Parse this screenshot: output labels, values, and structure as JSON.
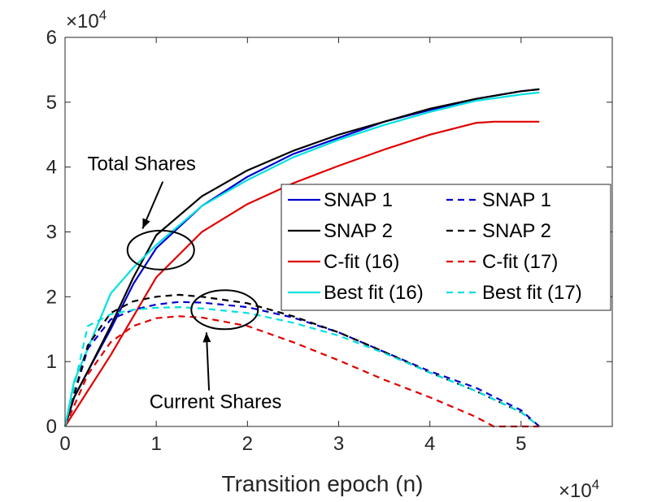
{
  "chart_data": {
    "type": "line",
    "xlabel": "Transition epoch (n)",
    "x_multiplier": "×10",
    "x_multiplier_exp": "4",
    "y_multiplier": "×10",
    "y_multiplier_exp": "4",
    "xlim": [
      0,
      6
    ],
    "ylim": [
      0,
      6
    ],
    "xticks": [
      "0",
      "1",
      "2",
      "3",
      "4",
      "5"
    ],
    "yticks": [
      "0",
      "1",
      "2",
      "3",
      "4",
      "5",
      "6"
    ],
    "grid": false,
    "legend_location": "center-right",
    "series": [
      {
        "name": "SNAP 1",
        "color": "#0000CD",
        "dash": "solid",
        "x": [
          0,
          0.1,
          0.25,
          0.5,
          0.75,
          1,
          1.5,
          2,
          2.5,
          3,
          3.5,
          4,
          4.5,
          5,
          5.2
        ],
        "y": [
          0,
          0.45,
          0.85,
          1.5,
          2.2,
          2.75,
          3.4,
          3.85,
          4.2,
          4.45,
          4.7,
          4.88,
          5.05,
          5.17,
          5.2
        ]
      },
      {
        "name": "SNAP 2",
        "color": "#000000",
        "dash": "solid",
        "x": [
          0,
          0.1,
          0.25,
          0.5,
          0.75,
          1,
          1.5,
          2,
          2.5,
          3,
          3.5,
          4,
          4.5,
          5,
          5.2
        ],
        "y": [
          0,
          0.45,
          0.85,
          1.55,
          2.3,
          2.95,
          3.55,
          3.95,
          4.25,
          4.5,
          4.7,
          4.9,
          5.05,
          5.17,
          5.2
        ]
      },
      {
        "name": "C-fit (16)",
        "color": "#E00000",
        "dash": "solid",
        "x": [
          0,
          0.25,
          0.5,
          1,
          1.5,
          2,
          2.5,
          3,
          3.5,
          4,
          4.5,
          4.7,
          5.0,
          5.2
        ],
        "y": [
          0,
          0.55,
          1.1,
          2.3,
          3.0,
          3.43,
          3.75,
          4.02,
          4.27,
          4.5,
          4.68,
          4.7,
          4.7,
          4.7
        ]
      },
      {
        "name": "Best fit (16)",
        "color": "#00E0E0",
        "dash": "solid",
        "x": [
          0,
          0.1,
          0.25,
          0.5,
          0.75,
          1,
          1.5,
          2,
          2.5,
          3,
          3.5,
          4,
          4.5,
          5,
          5.2
        ],
        "y": [
          0,
          0.7,
          1.2,
          2.05,
          2.45,
          2.8,
          3.4,
          3.8,
          4.15,
          4.42,
          4.65,
          4.85,
          5.02,
          5.12,
          5.15
        ]
      },
      {
        "name": "SNAP 1",
        "color": "#0000CD",
        "dash": "dashed",
        "x": [
          0,
          0.25,
          0.5,
          0.75,
          1,
          1.25,
          1.5,
          2,
          2.5,
          3,
          3.5,
          4,
          4.5,
          5,
          5.2
        ],
        "y": [
          0,
          1.2,
          1.65,
          1.8,
          1.88,
          1.92,
          1.91,
          1.84,
          1.68,
          1.45,
          1.15,
          0.85,
          0.6,
          0.25,
          0
        ]
      },
      {
        "name": "SNAP 2",
        "color": "#000000",
        "dash": "dashed",
        "x": [
          0,
          0.25,
          0.5,
          0.75,
          1,
          1.25,
          1.5,
          2,
          2.5,
          3,
          3.5,
          4,
          4.5,
          5,
          5.2
        ],
        "y": [
          0,
          1.25,
          1.75,
          1.93,
          2.0,
          2.03,
          2.0,
          1.9,
          1.7,
          1.45,
          1.15,
          0.83,
          0.55,
          0.22,
          0
        ]
      },
      {
        "name": "C-fit (17)",
        "color": "#E00000",
        "dash": "dashed",
        "x": [
          0,
          0.25,
          0.5,
          0.75,
          1,
          1.25,
          1.5,
          2,
          2.5,
          3,
          3.5,
          4,
          4.5,
          4.7,
          5.0,
          5.2
        ],
        "y": [
          0,
          0.8,
          1.3,
          1.55,
          1.67,
          1.7,
          1.68,
          1.55,
          1.3,
          1.02,
          0.72,
          0.45,
          0.15,
          0,
          0,
          0
        ]
      },
      {
        "name": "Best fit (17)",
        "color": "#00E0E0",
        "dash": "dashed",
        "x": [
          0,
          0.25,
          0.5,
          0.75,
          1,
          1.25,
          1.5,
          2,
          2.5,
          3,
          3.5,
          4,
          4.5,
          5,
          5.2
        ],
        "y": [
          0,
          1.55,
          1.73,
          1.8,
          1.83,
          1.84,
          1.82,
          1.75,
          1.6,
          1.4,
          1.13,
          0.83,
          0.55,
          0.22,
          0
        ]
      }
    ],
    "annotations": [
      {
        "text": "Total Shares",
        "ellipse_center": [
          1.05,
          2.72
        ],
        "arrow_to": [
          0.85,
          3.05
        ],
        "text_anchor": [
          0.84,
          3.95
        ]
      },
      {
        "text": "Current Shares",
        "ellipse_center": [
          1.75,
          1.8
        ],
        "arrow_to": [
          1.55,
          1.45
        ],
        "text_anchor": [
          1.65,
          0.28
        ]
      }
    ]
  }
}
